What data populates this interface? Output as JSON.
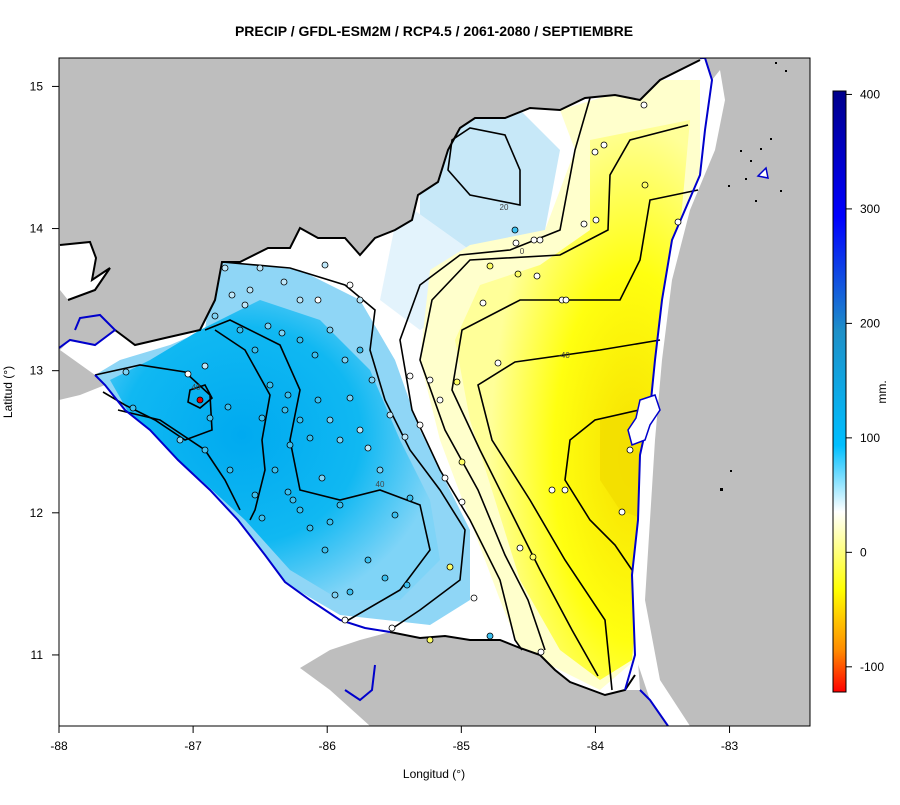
{
  "title": "PRECIP / GFDL-ESM2M / RCP4.5 / 2061-2080 / SEPTIEMBRE",
  "map": {
    "xlabel": "Longitud (°)",
    "ylabel": "Latitud (°)",
    "x_ticks": [
      "-88",
      "-87",
      "-86",
      "-85",
      "-84",
      "-83"
    ],
    "y_ticks": [
      "11",
      "12",
      "13",
      "14",
      "15"
    ],
    "x_range": [
      -88,
      -82.4
    ],
    "y_range": [
      10.5,
      15.2
    ],
    "contour_labels": [
      "20",
      "0",
      "-40",
      "40",
      "40"
    ],
    "land_color": "#bebebe",
    "coast_color": "#0000cc"
  },
  "colorbar": {
    "unit": "mm.",
    "ticks": [
      "400",
      "300",
      "200",
      "100",
      "0",
      "-100"
    ],
    "range": [
      -122,
      403
    ],
    "stops": [
      {
        "value": 400,
        "color": "#00008b"
      },
      {
        "value": 300,
        "color": "#0000ff"
      },
      {
        "value": 200,
        "color": "#1e90c8"
      },
      {
        "value": 100,
        "color": "#00bfff"
      },
      {
        "value": 0,
        "color": "#ffffff"
      },
      {
        "value": -60,
        "color": "#ffff00"
      },
      {
        "value": -100,
        "color": "#ff8c00"
      },
      {
        "value": -122,
        "color": "#ff0000"
      }
    ]
  }
}
